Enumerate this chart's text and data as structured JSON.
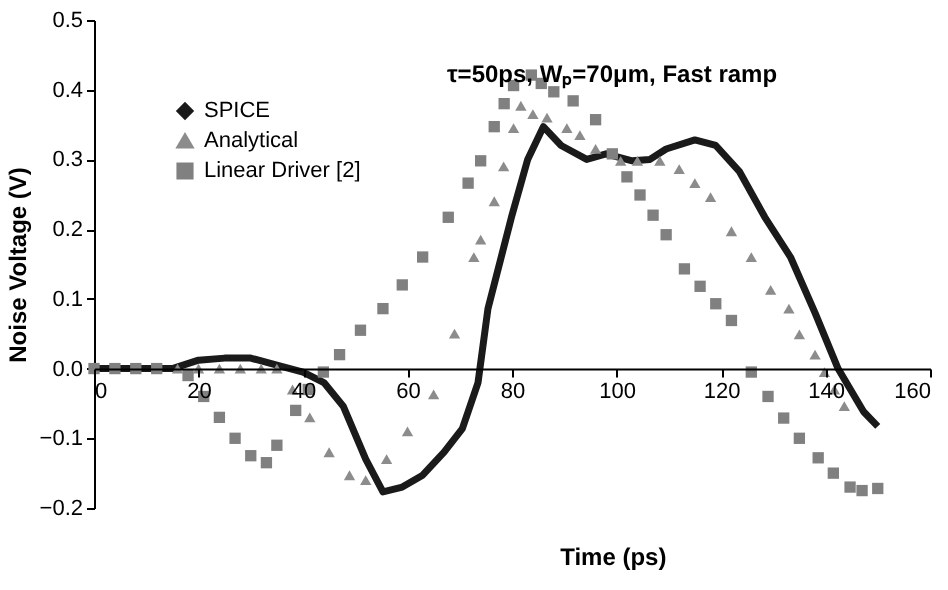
{
  "chart_data": {
    "type": "line",
    "title": "τ=50ps, Wₚ=70μm, Fast ramp",
    "xlabel": "Time (ps)",
    "ylabel": "Noise Voltage (V)",
    "xlim": [
      0,
      160
    ],
    "xticks": [
      0,
      20,
      40,
      60,
      80,
      100,
      120,
      140,
      160
    ],
    "ylim": [
      -0.2,
      0.5
    ],
    "yticks": [
      -0.2,
      -0.1,
      {
        "value": 0,
        "label": "0.0"
      },
      0.1,
      0.2,
      0.3,
      0.4,
      0.5
    ],
    "grid": false,
    "legend": "top left",
    "series": [
      {
        "name": "SPICE",
        "color": "#1a1a1a",
        "line_style": "solid",
        "marker": "none",
        "x": [
          0,
          10,
          15,
          20,
          25,
          30,
          35,
          37.5,
          40,
          44,
          47.7,
          52,
          55.3,
          59,
          62.9,
          67,
          70.5,
          73.5,
          75.4,
          80,
          83,
          86,
          89.4,
          94.3,
          98,
          103,
          106.4,
          109.5,
          115,
          119,
          123.5,
          128.4,
          133.3,
          138,
          142.4,
          147.3,
          150
        ],
        "values": [
          0,
          0,
          0,
          0.012,
          0.015,
          0.015,
          0.005,
          0,
          -0.005,
          -0.02,
          -0.054,
          -0.13,
          -0.177,
          -0.17,
          -0.153,
          -0.12,
          -0.086,
          -0.02,
          0.086,
          0.22,
          0.3,
          0.347,
          0.32,
          0.3,
          0.308,
          0.298,
          0.3,
          0.315,
          0.328,
          0.32,
          0.283,
          0.217,
          0.16,
          0.08,
          0,
          -0.062,
          -0.083
        ]
      },
      {
        "name": "Analytical",
        "type": "scatter",
        "color": "#8c8c8c",
        "marker": "triangle",
        "x": [
          16,
          20,
          24,
          28,
          32,
          35,
          38,
          41.3,
          45,
          48.9,
          52,
          56,
          60,
          65,
          69,
          72.7,
          74,
          76.6,
          78.4,
          80.3,
          81.7,
          84,
          86.7,
          90.5,
          93,
          96,
          100.8,
          104,
          108.3,
          112,
          115,
          118,
          122,
          125.8,
          129.5,
          133,
          135,
          138,
          139.8,
          141.7,
          143.6
        ],
        "values": [
          0,
          0,
          0,
          0,
          0,
          0,
          -0.03,
          -0.07,
          -0.12,
          -0.153,
          -0.16,
          -0.13,
          -0.09,
          -0.037,
          0.05,
          0.16,
          0.185,
          0.24,
          0.29,
          0.345,
          0.377,
          0.365,
          0.36,
          0.345,
          0.335,
          0.315,
          0.298,
          0.298,
          0.298,
          0.286,
          0.266,
          0.246,
          0.197,
          0.16,
          0.113,
          0.086,
          0.049,
          0.02,
          -0.005,
          -0.03,
          -0.054
        ]
      },
      {
        "name": "Linear Driver [2]",
        "type": "scatter",
        "color": "#808080",
        "marker": "square",
        "x": [
          0,
          4,
          8,
          12,
          18,
          21,
          24,
          27,
          30,
          33,
          35,
          38.6,
          41,
          43.9,
          47,
          51,
          55.3,
          59,
          62.9,
          67.8,
          71.6,
          74,
          76.6,
          78.5,
          80.3,
          83.7,
          85.6,
          88,
          91.7,
          96,
          99.2,
          102,
          104.5,
          107,
          109.5,
          113,
          116,
          119,
          122,
          125.8,
          129,
          132,
          135,
          138.6,
          141.5,
          144.7,
          147,
          150
        ],
        "values": [
          0,
          0,
          0,
          0,
          -0.01,
          -0.04,
          -0.07,
          -0.1,
          -0.125,
          -0.135,
          -0.11,
          -0.06,
          -0.03,
          -0.005,
          0.02,
          0.055,
          0.086,
          0.12,
          0.16,
          0.217,
          0.266,
          0.298,
          0.347,
          0.38,
          0.406,
          0.421,
          0.409,
          0.397,
          0.384,
          0.357,
          0.308,
          0.275,
          0.249,
          0.22,
          0.192,
          0.143,
          0.118,
          0.093,
          0.069,
          -0.005,
          -0.04,
          -0.071,
          -0.1,
          -0.128,
          -0.15,
          -0.17,
          -0.175,
          -0.172
        ]
      }
    ]
  }
}
